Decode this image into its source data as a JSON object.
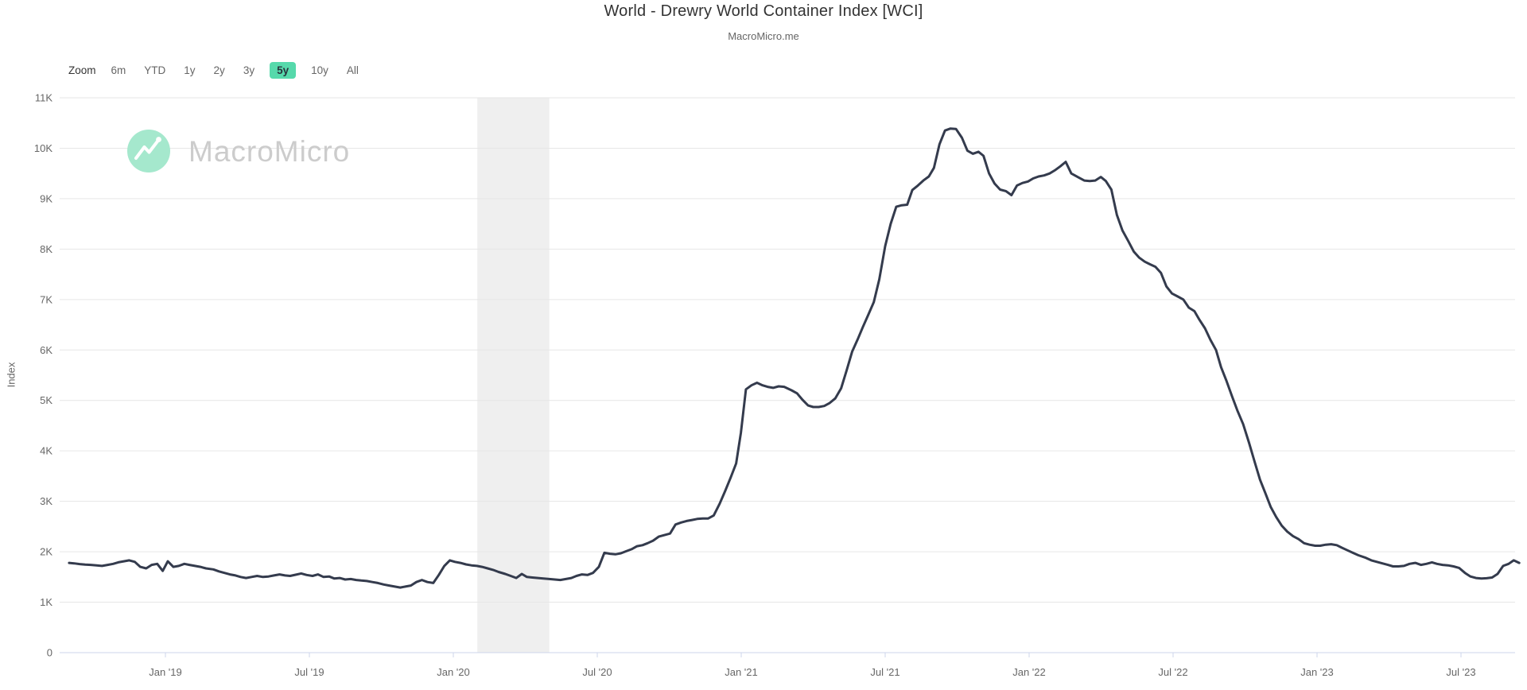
{
  "header": {
    "title": "World - Drewry World Container Index [WCI]",
    "subtitle": "MacroMicro.me"
  },
  "toolbar": {
    "zoom_label": "Zoom",
    "ranges": [
      {
        "label": "6m",
        "selected": false
      },
      {
        "label": "YTD",
        "selected": false
      },
      {
        "label": "1y",
        "selected": false
      },
      {
        "label": "2y",
        "selected": false
      },
      {
        "label": "3y",
        "selected": false
      },
      {
        "label": "5y",
        "selected": true
      },
      {
        "label": "10y",
        "selected": false
      },
      {
        "label": "All",
        "selected": false
      }
    ]
  },
  "watermark": {
    "brand": "MacroMicro"
  },
  "colors": {
    "line": "#343b4d",
    "grid": "#e6e6e6",
    "axis": "#ccd6eb",
    "band": "#efefef",
    "tick_label": "#666666",
    "title": "#333333",
    "selected_range_bg": "#56d9ab",
    "selected_range_text": "#28323c",
    "watermark_circle": "#a5e8cd",
    "watermark_text": "#cccccc"
  },
  "chart_data": {
    "type": "line",
    "title": "World - Drewry World Container Index [WCI]",
    "subtitle": "MacroMicro.me",
    "ylabel": "Index",
    "xlabel": "",
    "ylim": [
      0,
      11000
    ],
    "y_ticks": [
      "0",
      "1K",
      "2K",
      "3K",
      "4K",
      "5K",
      "6K",
      "7K",
      "8K",
      "9K",
      "10K",
      "11K"
    ],
    "x_ticks": [
      "Jan '19",
      "Jul '19",
      "Jan '20",
      "Jul '20",
      "Jan '21",
      "Jul '21",
      "Jan '22",
      "Jul '22",
      "Jan '23",
      "Jul '23"
    ],
    "x_range": [
      "2018-08-29",
      "2023-09-16"
    ],
    "grid": true,
    "legend": "none",
    "plot_band": {
      "from": "2020-02-01",
      "to": "2020-05-01"
    },
    "series": [
      {
        "name": "WCI",
        "points": [
          [
            "2018-08-31",
            1780
          ],
          [
            "2018-09-07",
            1770
          ],
          [
            "2018-09-14",
            1755
          ],
          [
            "2018-09-21",
            1745
          ],
          [
            "2018-09-28",
            1740
          ],
          [
            "2018-10-05",
            1730
          ],
          [
            "2018-10-12",
            1720
          ],
          [
            "2018-10-19",
            1740
          ],
          [
            "2018-10-26",
            1760
          ],
          [
            "2018-11-02",
            1790
          ],
          [
            "2018-11-09",
            1810
          ],
          [
            "2018-11-16",
            1830
          ],
          [
            "2018-11-23",
            1800
          ],
          [
            "2018-11-30",
            1700
          ],
          [
            "2018-12-07",
            1670
          ],
          [
            "2018-12-14",
            1740
          ],
          [
            "2018-12-21",
            1760
          ],
          [
            "2018-12-28",
            1620
          ],
          [
            "2019-01-04",
            1810
          ],
          [
            "2019-01-11",
            1700
          ],
          [
            "2019-01-18",
            1720
          ],
          [
            "2019-01-25",
            1760
          ],
          [
            "2019-02-01",
            1740
          ],
          [
            "2019-02-08",
            1720
          ],
          [
            "2019-02-15",
            1700
          ],
          [
            "2019-02-22",
            1670
          ],
          [
            "2019-03-01",
            1650
          ],
          [
            "2019-03-08",
            1610
          ],
          [
            "2019-03-15",
            1580
          ],
          [
            "2019-03-22",
            1550
          ],
          [
            "2019-03-29",
            1530
          ],
          [
            "2019-04-05",
            1500
          ],
          [
            "2019-04-12",
            1480
          ],
          [
            "2019-04-19",
            1500
          ],
          [
            "2019-04-26",
            1520
          ],
          [
            "2019-05-03",
            1500
          ],
          [
            "2019-05-10",
            1510
          ],
          [
            "2019-05-17",
            1530
          ],
          [
            "2019-05-24",
            1550
          ],
          [
            "2019-05-31",
            1530
          ],
          [
            "2019-06-07",
            1520
          ],
          [
            "2019-06-14",
            1545
          ],
          [
            "2019-06-21",
            1570
          ],
          [
            "2019-06-28",
            1540
          ],
          [
            "2019-07-05",
            1520
          ],
          [
            "2019-07-12",
            1550
          ],
          [
            "2019-07-19",
            1500
          ],
          [
            "2019-07-26",
            1510
          ],
          [
            "2019-08-02",
            1470
          ],
          [
            "2019-08-09",
            1480
          ],
          [
            "2019-08-16",
            1450
          ],
          [
            "2019-08-23",
            1460
          ],
          [
            "2019-08-30",
            1440
          ],
          [
            "2019-09-06",
            1430
          ],
          [
            "2019-09-13",
            1420
          ],
          [
            "2019-09-20",
            1400
          ],
          [
            "2019-09-27",
            1380
          ],
          [
            "2019-10-04",
            1350
          ],
          [
            "2019-10-11",
            1330
          ],
          [
            "2019-10-18",
            1310
          ],
          [
            "2019-10-25",
            1290
          ],
          [
            "2019-11-01",
            1310
          ],
          [
            "2019-11-08",
            1330
          ],
          [
            "2019-11-15",
            1400
          ],
          [
            "2019-11-22",
            1440
          ],
          [
            "2019-11-29",
            1400
          ],
          [
            "2019-12-06",
            1380
          ],
          [
            "2019-12-13",
            1540
          ],
          [
            "2019-12-20",
            1720
          ],
          [
            "2019-12-27",
            1830
          ],
          [
            "2020-01-03",
            1800
          ],
          [
            "2020-01-10",
            1780
          ],
          [
            "2020-01-17",
            1750
          ],
          [
            "2020-01-24",
            1730
          ],
          [
            "2020-01-31",
            1720
          ],
          [
            "2020-02-07",
            1700
          ],
          [
            "2020-02-14",
            1670
          ],
          [
            "2020-02-21",
            1640
          ],
          [
            "2020-02-28",
            1600
          ],
          [
            "2020-03-06",
            1560
          ],
          [
            "2020-03-13",
            1520
          ],
          [
            "2020-03-20",
            1480
          ],
          [
            "2020-03-27",
            1560
          ],
          [
            "2020-04-03",
            1500
          ],
          [
            "2020-04-10",
            1490
          ],
          [
            "2020-04-17",
            1480
          ],
          [
            "2020-04-24",
            1470
          ],
          [
            "2020-05-01",
            1460
          ],
          [
            "2020-05-08",
            1450
          ],
          [
            "2020-05-15",
            1440
          ],
          [
            "2020-05-22",
            1460
          ],
          [
            "2020-05-29",
            1480
          ],
          [
            "2020-06-05",
            1520
          ],
          [
            "2020-06-12",
            1550
          ],
          [
            "2020-06-19",
            1540
          ],
          [
            "2020-06-26",
            1580
          ],
          [
            "2020-07-03",
            1700
          ],
          [
            "2020-07-10",
            1980
          ],
          [
            "2020-07-17",
            1960
          ],
          [
            "2020-07-24",
            1950
          ],
          [
            "2020-07-31",
            1970
          ],
          [
            "2020-08-07",
            2010
          ],
          [
            "2020-08-14",
            2050
          ],
          [
            "2020-08-21",
            2110
          ],
          [
            "2020-08-28",
            2130
          ],
          [
            "2020-09-04",
            2170
          ],
          [
            "2020-09-11",
            2220
          ],
          [
            "2020-09-18",
            2300
          ],
          [
            "2020-09-25",
            2330
          ],
          [
            "2020-10-02",
            2360
          ],
          [
            "2020-10-09",
            2540
          ],
          [
            "2020-10-16",
            2580
          ],
          [
            "2020-10-23",
            2610
          ],
          [
            "2020-10-30",
            2630
          ],
          [
            "2020-11-06",
            2650
          ],
          [
            "2020-11-13",
            2660
          ],
          [
            "2020-11-20",
            2660
          ],
          [
            "2020-11-27",
            2720
          ],
          [
            "2020-12-04",
            2950
          ],
          [
            "2020-12-11",
            3200
          ],
          [
            "2020-12-18",
            3470
          ],
          [
            "2020-12-25",
            3750
          ],
          [
            "2020-12-31",
            4360
          ],
          [
            "2021-01-07",
            5220
          ],
          [
            "2021-01-14",
            5300
          ],
          [
            "2021-01-21",
            5350
          ],
          [
            "2021-01-28",
            5300
          ],
          [
            "2021-02-04",
            5270
          ],
          [
            "2021-02-11",
            5250
          ],
          [
            "2021-02-18",
            5280
          ],
          [
            "2021-02-25",
            5270
          ],
          [
            "2021-03-04",
            5200
          ],
          [
            "2021-03-11",
            5140
          ],
          [
            "2021-03-18",
            5010
          ],
          [
            "2021-03-25",
            4900
          ],
          [
            "2021-04-01",
            4870
          ],
          [
            "2021-04-08",
            4870
          ],
          [
            "2021-04-15",
            4890
          ],
          [
            "2021-04-22",
            4950
          ],
          [
            "2021-04-29",
            5040
          ],
          [
            "2021-05-06",
            5240
          ],
          [
            "2021-05-13",
            5600
          ],
          [
            "2021-05-20",
            5970
          ],
          [
            "2021-05-27",
            6210
          ],
          [
            "2021-06-03",
            6450
          ],
          [
            "2021-06-10",
            6700
          ],
          [
            "2021-06-17",
            6950
          ],
          [
            "2021-06-24",
            7400
          ],
          [
            "2021-07-01",
            8060
          ],
          [
            "2021-07-08",
            8500
          ],
          [
            "2021-07-15",
            8840
          ],
          [
            "2021-07-22",
            8870
          ],
          [
            "2021-07-29",
            8880
          ],
          [
            "2021-08-05",
            9170
          ],
          [
            "2021-08-12",
            9260
          ],
          [
            "2021-08-19",
            9360
          ],
          [
            "2021-08-26",
            9440
          ],
          [
            "2021-09-02",
            9610
          ],
          [
            "2021-09-09",
            10080
          ],
          [
            "2021-09-16",
            10350
          ],
          [
            "2021-09-23",
            10390
          ],
          [
            "2021-09-30",
            10380
          ],
          [
            "2021-10-07",
            10210
          ],
          [
            "2021-10-14",
            9950
          ],
          [
            "2021-10-21",
            9890
          ],
          [
            "2021-10-28",
            9930
          ],
          [
            "2021-11-04",
            9850
          ],
          [
            "2021-11-11",
            9500
          ],
          [
            "2021-11-18",
            9300
          ],
          [
            "2021-11-25",
            9180
          ],
          [
            "2021-12-02",
            9150
          ],
          [
            "2021-12-09",
            9070
          ],
          [
            "2021-12-16",
            9260
          ],
          [
            "2021-12-23",
            9310
          ],
          [
            "2021-12-30",
            9340
          ],
          [
            "2022-01-06",
            9400
          ],
          [
            "2022-01-13",
            9440
          ],
          [
            "2022-01-20",
            9460
          ],
          [
            "2022-01-27",
            9500
          ],
          [
            "2022-02-03",
            9560
          ],
          [
            "2022-02-10",
            9640
          ],
          [
            "2022-02-17",
            9730
          ],
          [
            "2022-02-24",
            9500
          ],
          [
            "2022-03-03",
            9420
          ],
          [
            "2022-03-10",
            9360
          ],
          [
            "2022-03-17",
            9350
          ],
          [
            "2022-03-24",
            9360
          ],
          [
            "2022-03-31",
            9430
          ],
          [
            "2022-04-07",
            9350
          ],
          [
            "2022-04-14",
            9180
          ],
          [
            "2022-04-21",
            8680
          ],
          [
            "2022-04-28",
            8370
          ],
          [
            "2022-05-05",
            8160
          ],
          [
            "2022-05-12",
            7950
          ],
          [
            "2022-05-19",
            7830
          ],
          [
            "2022-05-26",
            7750
          ],
          [
            "2022-06-02",
            7700
          ],
          [
            "2022-06-09",
            7650
          ],
          [
            "2022-06-16",
            7530
          ],
          [
            "2022-06-23",
            7260
          ],
          [
            "2022-06-30",
            7120
          ],
          [
            "2022-07-07",
            7060
          ],
          [
            "2022-07-14",
            7000
          ],
          [
            "2022-07-21",
            6840
          ],
          [
            "2022-07-28",
            6770
          ],
          [
            "2022-08-04",
            6600
          ],
          [
            "2022-08-11",
            6430
          ],
          [
            "2022-08-18",
            6200
          ],
          [
            "2022-08-25",
            6000
          ],
          [
            "2022-09-01",
            5660
          ],
          [
            "2022-09-08",
            5380
          ],
          [
            "2022-09-15",
            5080
          ],
          [
            "2022-09-22",
            4790
          ],
          [
            "2022-09-29",
            4530
          ],
          [
            "2022-10-06",
            4160
          ],
          [
            "2022-10-13",
            3790
          ],
          [
            "2022-10-20",
            3430
          ],
          [
            "2022-10-27",
            3150
          ],
          [
            "2022-11-03",
            2890
          ],
          [
            "2022-11-10",
            2690
          ],
          [
            "2022-11-17",
            2520
          ],
          [
            "2022-11-24",
            2400
          ],
          [
            "2022-12-01",
            2310
          ],
          [
            "2022-12-08",
            2250
          ],
          [
            "2022-12-15",
            2170
          ],
          [
            "2022-12-22",
            2140
          ],
          [
            "2022-12-29",
            2120
          ],
          [
            "2023-01-05",
            2120
          ],
          [
            "2023-01-12",
            2140
          ],
          [
            "2023-01-19",
            2150
          ],
          [
            "2023-01-26",
            2130
          ],
          [
            "2023-02-02",
            2080
          ],
          [
            "2023-02-09",
            2030
          ],
          [
            "2023-02-16",
            1980
          ],
          [
            "2023-02-23",
            1930
          ],
          [
            "2023-03-02",
            1880
          ],
          [
            "2023-03-09",
            1830
          ],
          [
            "2023-03-16",
            1800
          ],
          [
            "2023-03-23",
            1770
          ],
          [
            "2023-03-30",
            1740
          ],
          [
            "2023-04-06",
            1710
          ],
          [
            "2023-04-13",
            1710
          ],
          [
            "2023-04-20",
            1720
          ],
          [
            "2023-04-27",
            1760
          ],
          [
            "2023-05-04",
            1780
          ],
          [
            "2023-05-11",
            1740
          ],
          [
            "2023-05-18",
            1760
          ],
          [
            "2023-05-25",
            1790
          ],
          [
            "2023-06-01",
            1760
          ],
          [
            "2023-06-08",
            1740
          ],
          [
            "2023-06-15",
            1730
          ],
          [
            "2023-06-22",
            1710
          ],
          [
            "2023-06-29",
            1680
          ],
          [
            "2023-07-06",
            1580
          ],
          [
            "2023-07-13",
            1510
          ],
          [
            "2023-07-20",
            1480
          ],
          [
            "2023-07-27",
            1470
          ],
          [
            "2023-08-03",
            1475
          ],
          [
            "2023-08-10",
            1490
          ],
          [
            "2023-08-17",
            1560
          ],
          [
            "2023-08-24",
            1720
          ],
          [
            "2023-08-31",
            1760
          ],
          [
            "2023-09-07",
            1830
          ],
          [
            "2023-09-14",
            1780
          ]
        ]
      }
    ]
  }
}
